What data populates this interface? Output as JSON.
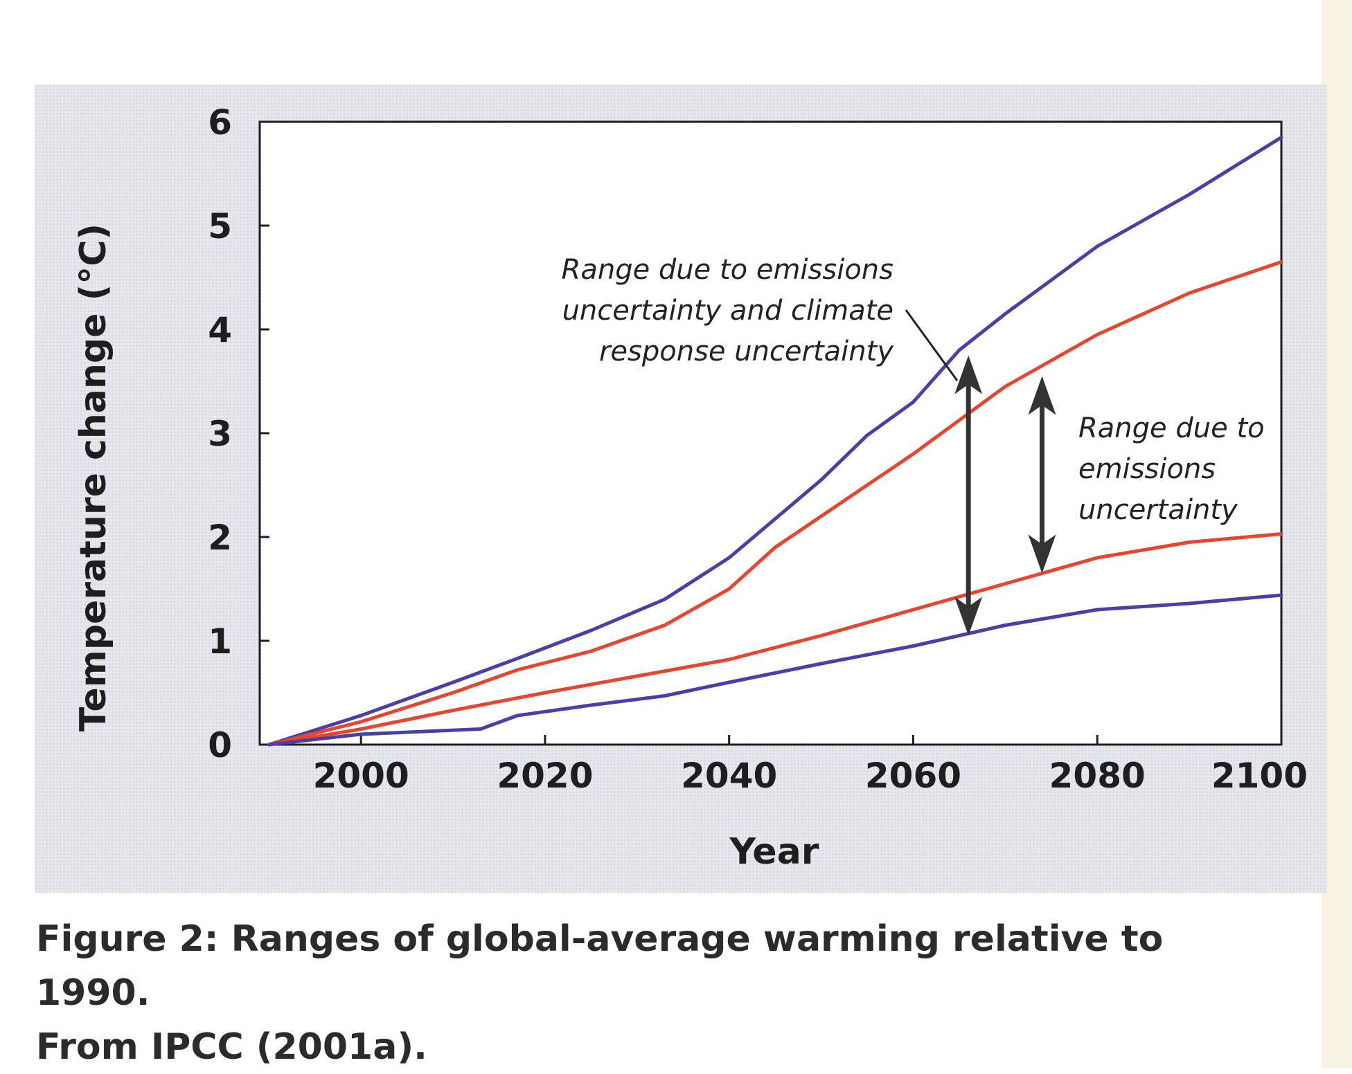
{
  "page": {
    "caption_line1": "Figure 2: Ranges of global-average warming relative to 1990.",
    "caption_line2": "From IPCC (2001a)."
  },
  "colors": {
    "outer_range": "#4a3fa8",
    "inner_range": "#e8452e",
    "arrow": "#333333"
  },
  "chart_data": {
    "type": "line",
    "title": "",
    "xlabel": "Year",
    "ylabel": "Temperature change (°C)",
    "xlim": [
      1989,
      2100
    ],
    "ylim": [
      0,
      6
    ],
    "xticks": [
      2000,
      2020,
      2040,
      2060,
      2080,
      2100
    ],
    "yticks": [
      0,
      1,
      2,
      3,
      4,
      5,
      6
    ],
    "grid": false,
    "legend": "none",
    "series": [
      {
        "color": "#4a3fa8",
        "x": [
          1990,
          2000,
          2010,
          2017,
          2025,
          2033,
          2040,
          2050,
          2055,
          2060,
          2065,
          2070,
          2080,
          2090,
          2100
        ],
        "y": [
          0,
          0.28,
          0.6,
          0.83,
          1.1,
          1.4,
          1.8,
          2.55,
          2.98,
          3.3,
          3.8,
          4.15,
          4.8,
          5.3,
          5.85
        ]
      },
      {
        "color": "#e8452e",
        "x": [
          1990,
          2000,
          2010,
          2017,
          2025,
          2033,
          2040,
          2045,
          2050,
          2060,
          2070,
          2080,
          2090,
          2100
        ],
        "y": [
          0,
          0.22,
          0.5,
          0.72,
          0.9,
          1.15,
          1.5,
          1.9,
          2.2,
          2.8,
          3.45,
          3.95,
          4.35,
          4.65
        ]
      },
      {
        "color": "#e8452e",
        "x": [
          1990,
          2000,
          2010,
          2020,
          2030,
          2040,
          2050,
          2060,
          2070,
          2080,
          2090,
          2100
        ],
        "y": [
          0,
          0.15,
          0.33,
          0.5,
          0.66,
          0.82,
          1.05,
          1.3,
          1.55,
          1.8,
          1.95,
          2.03
        ]
      },
      {
        "color": "#4a3fa8",
        "x": [
          1990,
          2000,
          2013,
          2017,
          2025,
          2033,
          2040,
          2050,
          2060,
          2070,
          2080,
          2090,
          2100
        ],
        "y": [
          0,
          0.1,
          0.15,
          0.28,
          0.38,
          0.47,
          0.6,
          0.78,
          0.95,
          1.15,
          1.3,
          1.36,
          1.44
        ]
      }
    ],
    "annotations": [
      {
        "lines": [
          "Range due to emissions",
          "uncertainty and climate",
          "response uncertainty"
        ],
        "arrow_x": 2066,
        "arrow_y": [
          1.05,
          3.75
        ]
      },
      {
        "lines": [
          "Range due to",
          "emissions",
          "uncertainty"
        ],
        "arrow_x": 2074,
        "arrow_y": [
          1.65,
          3.55
        ]
      }
    ]
  }
}
